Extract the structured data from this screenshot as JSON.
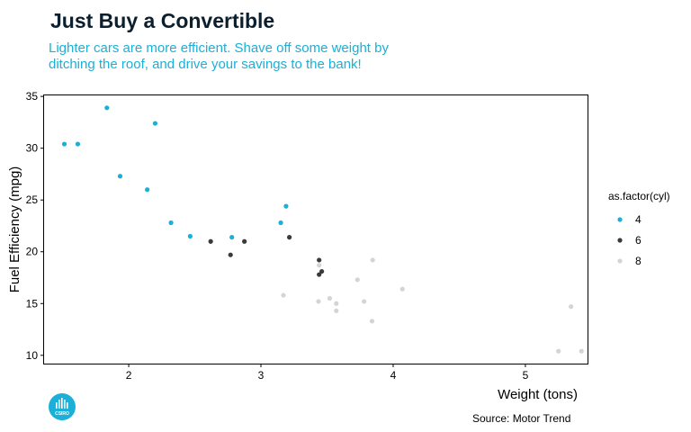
{
  "title": "Just Buy a Convertible",
  "subtitle": "Lighter cars are more efficient. Shave off some weight by ditching the roof, and drive your savings to the bank!",
  "caption": "Source: Motor Trend",
  "logo_text": "CSIRO",
  "colors": {
    "4": "#1ab0d8",
    "6": "#3a3a3a",
    "8": "#d4d4d4",
    "title": "#0b1f2e",
    "subtitle": "#1ab0d8"
  },
  "chart_data": {
    "type": "scatter",
    "title": "Just Buy a Convertible",
    "subtitle": "Lighter cars are more efficient. Shave off some weight by ditching the roof, and drive your savings to the bank!",
    "xlabel": "Weight (tons)",
    "ylabel": "Fuel Efficiency (mpg)",
    "xlim": [
      1.36,
      5.47
    ],
    "ylim": [
      9.2,
      35.1
    ],
    "xticks": [
      2,
      3,
      4,
      5
    ],
    "yticks": [
      10,
      15,
      20,
      25,
      30,
      35
    ],
    "legend_title": "as.factor(cyl)",
    "legend_position": "right",
    "grid": false,
    "series": [
      {
        "name": "4",
        "color": "#1ab0d8",
        "points": [
          [
            1.513,
            30.4
          ],
          [
            1.615,
            30.4
          ],
          [
            1.835,
            33.9
          ],
          [
            1.935,
            27.3
          ],
          [
            2.14,
            26.0
          ],
          [
            2.2,
            32.4
          ],
          [
            2.32,
            22.8
          ],
          [
            2.465,
            21.5
          ],
          [
            2.78,
            21.4
          ],
          [
            3.15,
            22.8
          ],
          [
            3.19,
            24.4
          ]
        ]
      },
      {
        "name": "6",
        "color": "#3a3a3a",
        "points": [
          [
            2.62,
            21.0
          ],
          [
            2.77,
            19.7
          ],
          [
            2.875,
            21.0
          ],
          [
            3.215,
            21.4
          ],
          [
            3.44,
            19.2
          ],
          [
            3.44,
            17.8
          ],
          [
            3.46,
            18.1
          ]
        ]
      },
      {
        "name": "8",
        "color": "#d4d4d4",
        "points": [
          [
            3.17,
            15.8
          ],
          [
            3.435,
            15.2
          ],
          [
            3.44,
            18.7
          ],
          [
            3.52,
            15.5
          ],
          [
            3.57,
            15.0
          ],
          [
            3.57,
            14.3
          ],
          [
            3.73,
            17.3
          ],
          [
            3.78,
            15.2
          ],
          [
            3.84,
            13.3
          ],
          [
            3.845,
            19.2
          ],
          [
            4.07,
            16.4
          ],
          [
            5.25,
            10.4
          ],
          [
            5.345,
            14.7
          ],
          [
            5.424,
            10.4
          ]
        ]
      }
    ]
  }
}
